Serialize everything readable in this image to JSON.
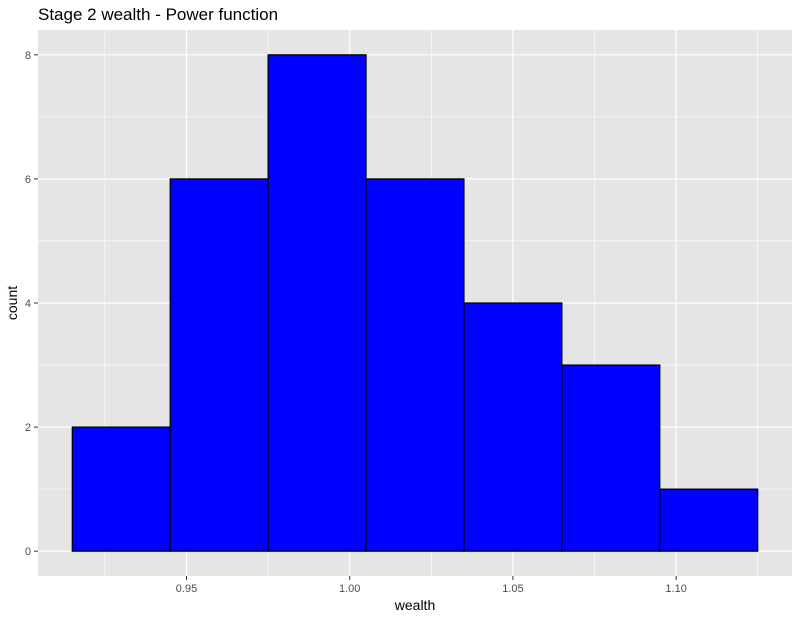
{
  "chart_data": {
    "type": "histogram",
    "title": "Stage 2 wealth - Power function",
    "xlabel": "wealth",
    "ylabel": "count",
    "bins": [
      {
        "start": 0.915,
        "end": 0.945,
        "count": 2
      },
      {
        "start": 0.945,
        "end": 0.975,
        "count": 6
      },
      {
        "start": 0.975,
        "end": 1.005,
        "count": 8
      },
      {
        "start": 1.005,
        "end": 1.035,
        "count": 6
      },
      {
        "start": 1.035,
        "end": 1.065,
        "count": 4
      },
      {
        "start": 1.065,
        "end": 1.095,
        "count": 3
      },
      {
        "start": 1.095,
        "end": 1.125,
        "count": 1
      }
    ],
    "xticks": [
      "0.95",
      "1.00",
      "1.05",
      "1.10"
    ],
    "yticks": [
      "0",
      "2",
      "4",
      "6",
      "8"
    ],
    "xlim": [
      0.9045,
      1.1355
    ],
    "ylim": [
      -0.4,
      8.4
    ],
    "grid": true,
    "colors": {
      "bar_fill": "#0000ff",
      "bar_stroke": "#000000",
      "panel_bg": "#e5e5e5",
      "grid": "#ffffff"
    }
  }
}
